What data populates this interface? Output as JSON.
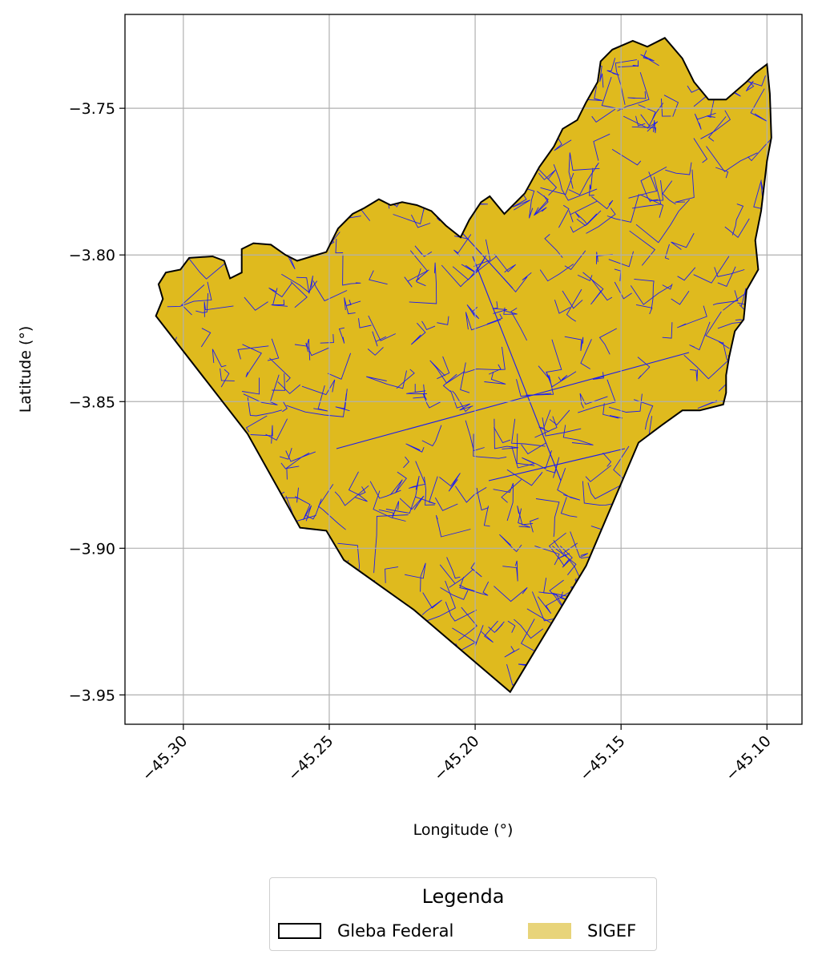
{
  "chart_data": {
    "type": "map",
    "xlabel": "Longitude (°)",
    "ylabel": "Latitude (°)",
    "xlim": [
      -45.32,
      -45.088
    ],
    "ylim": [
      -3.96,
      -3.718
    ],
    "xticks": [
      -45.3,
      -45.25,
      -45.2,
      -45.15,
      -45.1
    ],
    "xtick_labels": [
      "−45.30",
      "−45.25",
      "−45.20",
      "−45.15",
      "−45.10"
    ],
    "yticks": [
      -3.75,
      -3.8,
      -3.85,
      -3.9,
      -3.95
    ],
    "ytick_labels": [
      "−3.75",
      "−3.80",
      "−3.85",
      "−3.90",
      "−3.95"
    ],
    "xtick_rotation": 45,
    "grid": true,
    "legend_placement": "below",
    "legend_columns": 2,
    "boundary": {
      "name": "Gleba Federal",
      "edge_color": "#000000",
      "fill": "none",
      "lonlat": [
        [
          -45.3094,
          -3.8208
        ],
        [
          -45.307,
          -3.815
        ],
        [
          -45.3085,
          -3.81
        ],
        [
          -45.306,
          -3.806
        ],
        [
          -45.301,
          -3.805
        ],
        [
          -45.298,
          -3.801
        ],
        [
          -45.29,
          -3.8005
        ],
        [
          -45.286,
          -3.802
        ],
        [
          -45.284,
          -3.808
        ],
        [
          -45.28,
          -3.806
        ],
        [
          -45.28,
          -3.798
        ],
        [
          -45.276,
          -3.796
        ],
        [
          -45.27,
          -3.7965
        ],
        [
          -45.265,
          -3.8
        ],
        [
          -45.261,
          -3.802
        ],
        [
          -45.256,
          -3.8005
        ],
        [
          -45.251,
          -3.799
        ],
        [
          -45.247,
          -3.791
        ],
        [
          -45.242,
          -3.786
        ],
        [
          -45.238,
          -3.784
        ],
        [
          -45.233,
          -3.781
        ],
        [
          -45.229,
          -3.783
        ],
        [
          -45.225,
          -3.782
        ],
        [
          -45.22,
          -3.783
        ],
        [
          -45.215,
          -3.785
        ],
        [
          -45.21,
          -3.79
        ],
        [
          -45.205,
          -3.794
        ],
        [
          -45.202,
          -3.788
        ],
        [
          -45.198,
          -3.782
        ],
        [
          -45.195,
          -3.78
        ],
        [
          -45.19,
          -3.786
        ],
        [
          -45.183,
          -3.779
        ],
        [
          -45.178,
          -3.77
        ],
        [
          -45.173,
          -3.763
        ],
        [
          -45.17,
          -3.757
        ],
        [
          -45.165,
          -3.754
        ],
        [
          -45.162,
          -3.748
        ],
        [
          -45.158,
          -3.741
        ],
        [
          -45.157,
          -3.734
        ],
        [
          -45.153,
          -3.73
        ],
        [
          -45.146,
          -3.727
        ],
        [
          -45.141,
          -3.729
        ],
        [
          -45.135,
          -3.726
        ],
        [
          -45.129,
          -3.733
        ],
        [
          -45.125,
          -3.741
        ],
        [
          -45.12,
          -3.747
        ],
        [
          -45.114,
          -3.747
        ],
        [
          -45.107,
          -3.741
        ],
        [
          -45.104,
          -3.738
        ],
        [
          -45.1,
          -3.735
        ],
        [
          -45.099,
          -3.745
        ],
        [
          -45.0985,
          -3.76
        ],
        [
          -45.1,
          -3.768
        ],
        [
          -45.102,
          -3.785
        ],
        [
          -45.104,
          -3.795
        ],
        [
          -45.103,
          -3.805
        ],
        [
          -45.107,
          -3.812
        ],
        [
          -45.108,
          -3.822
        ],
        [
          -45.111,
          -3.826
        ],
        [
          -45.113,
          -3.835
        ],
        [
          -45.114,
          -3.841
        ],
        [
          -45.114,
          -3.847
        ],
        [
          -45.115,
          -3.851
        ],
        [
          -45.123,
          -3.853
        ],
        [
          -45.129,
          -3.853
        ],
        [
          -45.136,
          -3.858
        ],
        [
          -45.144,
          -3.864
        ],
        [
          -45.162,
          -3.906
        ],
        [
          -45.188,
          -3.949
        ],
        [
          -45.221,
          -3.921
        ],
        [
          -45.245,
          -3.904
        ],
        [
          -45.251,
          -3.894
        ],
        [
          -45.26,
          -3.893
        ],
        [
          -45.278,
          -3.861
        ],
        [
          -45.3094,
          -3.8208
        ]
      ]
    },
    "series": [
      {
        "name": "SIGEF",
        "fill_color": "#dfba1e",
        "legend_color": "#e8d47a",
        "parcel_edge_color": "#1c1cf0"
      }
    ]
  },
  "legend": {
    "title": "Legenda",
    "items": [
      {
        "label": "Gleba Federal"
      },
      {
        "label": "SIGEF"
      }
    ]
  }
}
